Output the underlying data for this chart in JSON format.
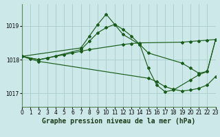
{
  "background_color": "#cce8e8",
  "grid_color": "#aacccc",
  "line_color": "#1a5c1a",
  "title": "Graphe pression niveau de la mer (hPa)",
  "xlim": [
    0,
    23
  ],
  "ylim": [
    1016.6,
    1019.65
  ],
  "yticks": [
    1017,
    1018,
    1019
  ],
  "xticks": [
    0,
    1,
    2,
    3,
    4,
    5,
    6,
    7,
    8,
    9,
    10,
    11,
    12,
    13,
    14,
    15,
    16,
    17,
    18,
    19,
    20,
    21,
    22,
    23
  ],
  "series": [
    {
      "x": [
        0,
        2,
        3,
        4,
        5,
        6,
        7,
        8,
        12,
        13,
        14,
        19,
        20,
        21,
        22,
        23
      ],
      "y": [
        1018.1,
        1018.0,
        1018.05,
        1018.1,
        1018.15,
        1018.2,
        1018.25,
        1018.3,
        1018.45,
        1018.48,
        1018.5,
        1018.52,
        1018.54,
        1018.56,
        1018.58,
        1018.6
      ]
    },
    {
      "x": [
        0,
        2,
        3,
        7,
        8,
        9,
        10,
        11,
        12,
        13,
        14,
        15,
        19,
        20,
        21,
        22,
        23
      ],
      "y": [
        1018.1,
        1018.0,
        1018.05,
        1018.3,
        1018.55,
        1018.8,
        1018.95,
        1019.05,
        1018.9,
        1018.7,
        1018.45,
        1018.2,
        1017.9,
        1017.75,
        1017.6,
        1017.65,
        1018.6
      ]
    },
    {
      "x": [
        0,
        7,
        8,
        9,
        10,
        11,
        12,
        14,
        15,
        16,
        17,
        18,
        20,
        21,
        22,
        23
      ],
      "y": [
        1018.1,
        1018.35,
        1018.7,
        1019.05,
        1019.35,
        1019.05,
        1018.75,
        1018.45,
        1017.75,
        1017.25,
        1017.05,
        1017.1,
        1017.4,
        1017.55,
        1017.65,
        1018.6
      ]
    },
    {
      "x": [
        0,
        1,
        2,
        15,
        16,
        17,
        18,
        19,
        20,
        21,
        22,
        23
      ],
      "y": [
        1018.1,
        1018.02,
        1017.95,
        1017.45,
        1017.35,
        1017.2,
        1017.12,
        1017.07,
        1017.1,
        1017.15,
        1017.25,
        1017.5
      ]
    }
  ],
  "title_fontsize": 7,
  "tick_fontsize": 5.5
}
